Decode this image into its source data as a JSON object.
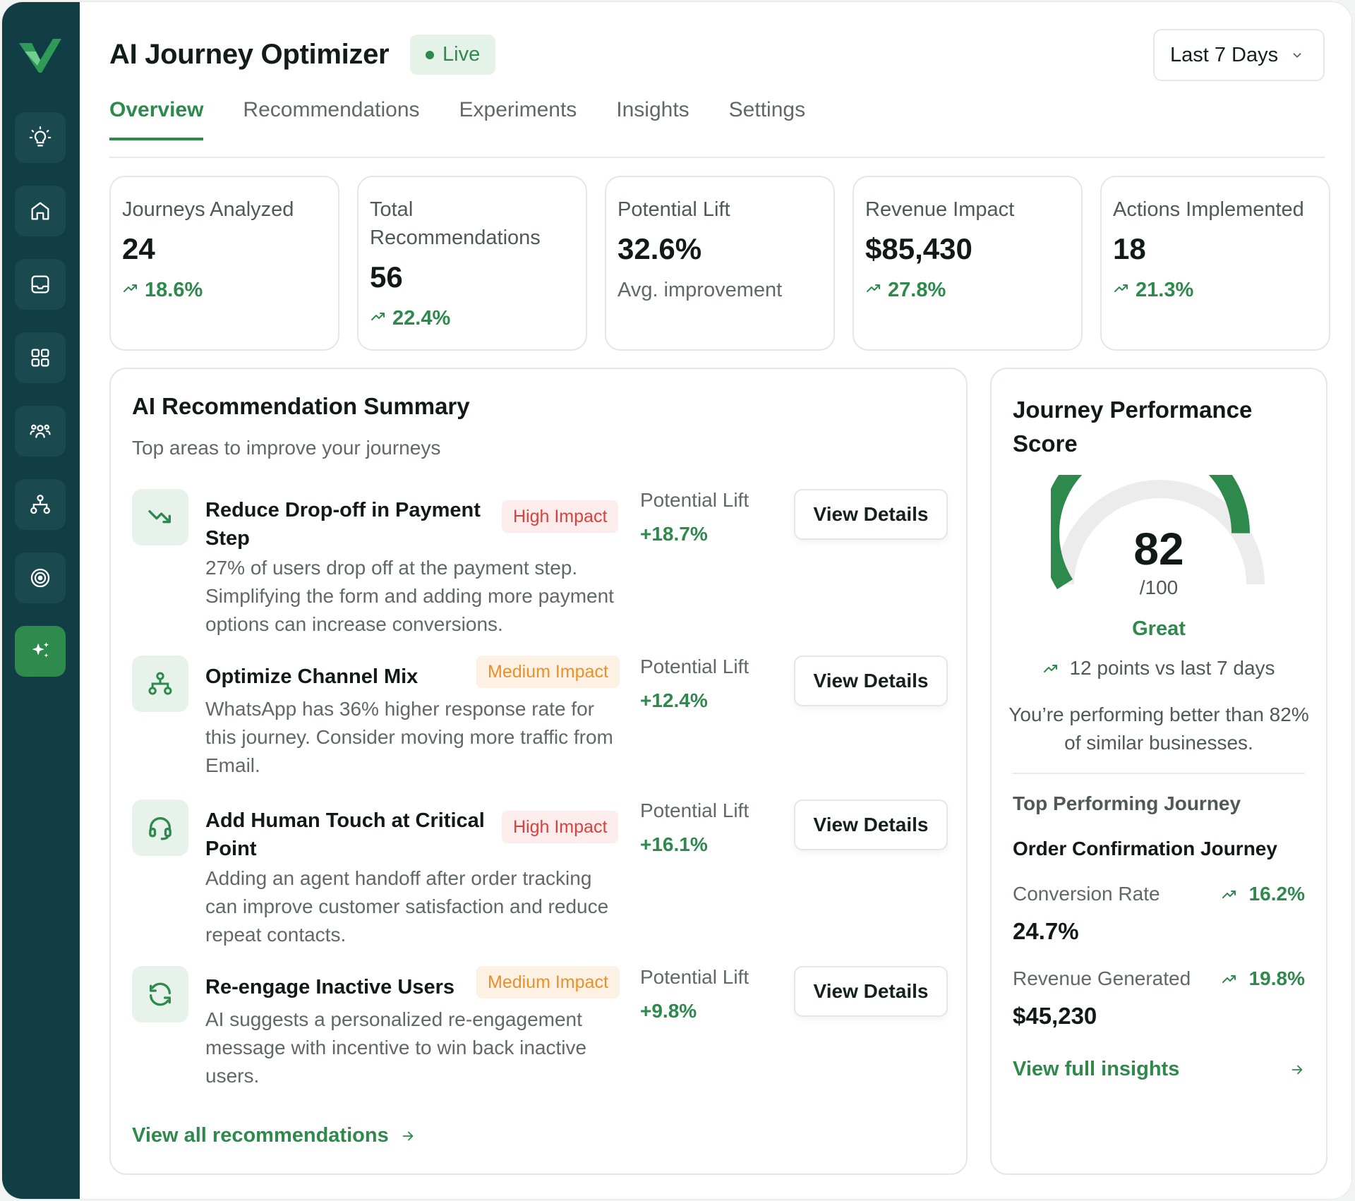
{
  "header": {
    "title": "AI Journey Optimizer",
    "status": "Live",
    "date_range": "Last 7 Days"
  },
  "tabs": [
    {
      "label": "Overview",
      "active": true
    },
    {
      "label": "Recommendations",
      "active": false
    },
    {
      "label": "Experiments",
      "active": false
    },
    {
      "label": "Insights",
      "active": false
    },
    {
      "label": "Settings",
      "active": false
    }
  ],
  "sidebar": {
    "icons": [
      "logo-icon",
      "lightbulb-icon",
      "home-icon",
      "inbox-icon",
      "grid-icon",
      "users-icon",
      "hierarchy-icon",
      "target-icon",
      "sparkles-icon"
    ],
    "active": "sparkles-icon"
  },
  "kpis": [
    {
      "label": "Journeys Analyzed",
      "value": "24",
      "delta": "18.6%"
    },
    {
      "label": "Total Recommendations",
      "value": "56",
      "delta": "22.4%"
    },
    {
      "label": "Potential Lift",
      "value": "32.6%",
      "sub": "Avg. improvement"
    },
    {
      "label": "Revenue Impact",
      "value": "$85,430",
      "delta": "27.8%"
    },
    {
      "label": "Actions Implemented",
      "value": "18",
      "delta": "21.3%"
    }
  ],
  "recommendations": {
    "title": "AI Recommendation Summary",
    "subtitle": "Top areas to improve your journeys",
    "lift_label": "Potential Lift",
    "button_label": "View Details",
    "items": [
      {
        "title": "Reduce Drop-off in Payment Step",
        "impact": "High Impact",
        "description": "27% of users drop off at the payment step. Simplifying the form and adding more payment options can increase conversions.",
        "lift": "+18.7%",
        "icon": "trending-down-icon"
      },
      {
        "title": "Optimize Channel Mix",
        "impact": "Medium Impact",
        "description": "WhatsApp has 36% higher response rate for this journey. Consider moving more traffic from Email.",
        "lift": "+12.4%",
        "icon": "hierarchy-icon"
      },
      {
        "title": "Add Human Touch at Critical Point",
        "impact": "High Impact",
        "description": "Adding an agent handoff after order tracking can improve customer satisfaction and reduce repeat contacts.",
        "lift": "+16.1%",
        "icon": "headset-icon"
      },
      {
        "title": "Re-engage Inactive Users",
        "impact": "Medium Impact",
        "description": "AI suggests a personalized re-engagement message with incentive to win back inactive users.",
        "lift": "+9.8%",
        "icon": "refresh-icon"
      }
    ],
    "view_all": "View all recommendations"
  },
  "score": {
    "title": "Journey Performance Score",
    "value": "82",
    "value_num": 82,
    "max": "/100",
    "rating": "Great",
    "delta": "12 points vs last 7 days",
    "note": "You’re performing better than 82% of similar businesses.",
    "top_label": "Top Performing Journey",
    "top_name": "Order Confirmation Journey",
    "metrics": [
      {
        "label": "Conversion Rate",
        "value": "24.7%",
        "delta": "16.2%"
      },
      {
        "label": "Revenue Generated",
        "value": "$45,230",
        "delta": "19.8%"
      }
    ],
    "link": "View full insights"
  },
  "colors": {
    "sidebar": "#113e45",
    "accent": "#2d8a4c",
    "high": "#d9423c",
    "medium": "#e9902b"
  }
}
